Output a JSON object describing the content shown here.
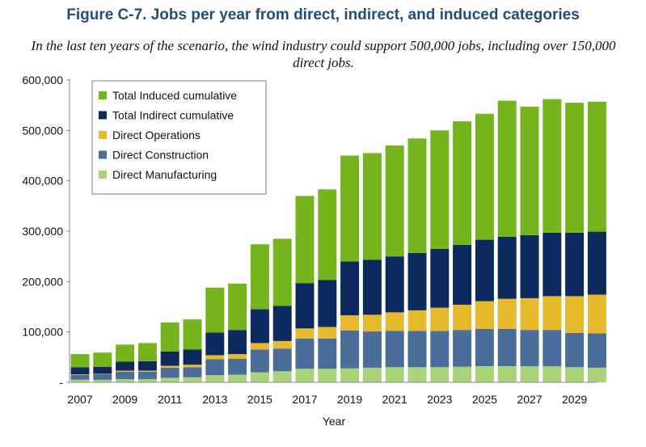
{
  "title": "Figure C-7. Jobs per year from direct, indirect, and induced categories",
  "subtitle": "In the last ten years of the scenario, the wind industry could support 500,000 jobs, including over 150,000 direct jobs.",
  "chart_data": {
    "type": "bar",
    "stacked": true,
    "xlabel": "Year",
    "ylabel": "",
    "ylim": [
      0,
      600000
    ],
    "yticks": [
      0,
      100000,
      200000,
      300000,
      400000,
      500000,
      600000
    ],
    "ytick_labels": [
      "-",
      "100,000",
      "200,000",
      "300,000",
      "400,000",
      "500,000",
      "600,000"
    ],
    "xtick_labels": [
      "2007",
      "2009",
      "2011",
      "2013",
      "2015",
      "2017",
      "2019",
      "2021",
      "2023",
      "2025",
      "2027",
      "2029"
    ],
    "categories": [
      "2007",
      "2008",
      "2009",
      "2010",
      "2011",
      "2012",
      "2013",
      "2014",
      "2015",
      "2016",
      "2017",
      "2018",
      "2019",
      "2020",
      "2021",
      "2022",
      "2023",
      "2024",
      "2025",
      "2026",
      "2027",
      "2028",
      "2029",
      "2030"
    ],
    "grid": false,
    "legend_position": "top-left",
    "series": [
      {
        "name": "Direct Manufacturing",
        "color": "#a9d279",
        "values": [
          5000,
          5000,
          6000,
          6000,
          9000,
          10000,
          14000,
          15000,
          20000,
          22000,
          27000,
          27000,
          28000,
          29000,
          30000,
          30000,
          30000,
          31000,
          32000,
          32000,
          32000,
          32000,
          30000,
          29000
        ]
      },
      {
        "name": "Direct Construction",
        "color": "#4a6e99",
        "values": [
          10000,
          11000,
          15000,
          15000,
          20000,
          20000,
          32000,
          32000,
          45000,
          45000,
          60000,
          60000,
          75000,
          72000,
          72000,
          72000,
          72000,
          73000,
          74000,
          74000,
          72000,
          72000,
          68000,
          68000
        ]
      },
      {
        "name": "Direct Operations",
        "color": "#e7b92c",
        "values": [
          1000,
          1000,
          2000,
          2000,
          4000,
          5000,
          8000,
          9000,
          13000,
          15000,
          20000,
          23000,
          30000,
          33000,
          37000,
          41000,
          46000,
          50000,
          55000,
          60000,
          63000,
          67000,
          73000,
          77000
        ]
      },
      {
        "name": "Total Indirect cumulative",
        "color": "#0d2a5e",
        "values": [
          14000,
          14000,
          18000,
          19000,
          28000,
          30000,
          45000,
          48000,
          67000,
          70000,
          90000,
          93000,
          107000,
          109000,
          111000,
          114000,
          117000,
          119000,
          122000,
          123000,
          125000,
          126000,
          126000,
          125000
        ]
      },
      {
        "name": "Total Induced cumulative",
        "color": "#76b41d",
        "values": [
          26000,
          28000,
          34000,
          36000,
          58000,
          60000,
          89000,
          92000,
          129000,
          133000,
          173000,
          180000,
          210000,
          212000,
          220000,
          227000,
          235000,
          245000,
          250000,
          270000,
          255000,
          265000,
          258000,
          258000
        ]
      }
    ]
  }
}
